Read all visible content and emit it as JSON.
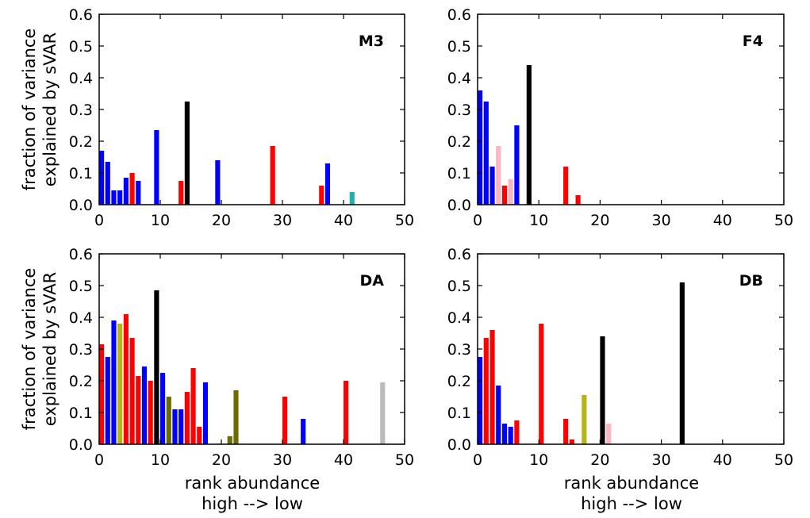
{
  "figure": {
    "ylabel_line1": "fraction of variance",
    "ylabel_line2": "explained by sVAR",
    "xlabel_line1": "rank abundance",
    "xlabel_line2": "high --> low"
  },
  "colors": {
    "blue": "#0000ff",
    "red": "#ff0000",
    "black": "#000000",
    "teal": "#20b2aa",
    "pink": "#ffb6c1",
    "olive": "#6b6b00",
    "yellowgreen": "#b5b51a",
    "gray": "#bbbbbb"
  },
  "chart_data": [
    {
      "type": "bar",
      "panel_label": "M3",
      "xlim": [
        0,
        50
      ],
      "ylim": [
        0,
        0.6
      ],
      "xticks": [
        "0",
        "10",
        "20",
        "30",
        "40",
        "50"
      ],
      "yticks": [
        "0.0",
        "0.1",
        "0.2",
        "0.3",
        "0.4",
        "0.5",
        "0.6"
      ],
      "bars": [
        {
          "x": 0,
          "y": 0.17,
          "color": "blue"
        },
        {
          "x": 1,
          "y": 0.135,
          "color": "blue"
        },
        {
          "x": 2,
          "y": 0.045,
          "color": "blue"
        },
        {
          "x": 3,
          "y": 0.045,
          "color": "blue"
        },
        {
          "x": 4,
          "y": 0.085,
          "color": "blue"
        },
        {
          "x": 5,
          "y": 0.1,
          "color": "red"
        },
        {
          "x": 6,
          "y": 0.075,
          "color": "blue"
        },
        {
          "x": 9,
          "y": 0.235,
          "color": "blue"
        },
        {
          "x": 13,
          "y": 0.075,
          "color": "red"
        },
        {
          "x": 14,
          "y": 0.325,
          "color": "black"
        },
        {
          "x": 19,
          "y": 0.14,
          "color": "blue"
        },
        {
          "x": 28,
          "y": 0.185,
          "color": "red"
        },
        {
          "x": 36,
          "y": 0.06,
          "color": "red"
        },
        {
          "x": 37,
          "y": 0.13,
          "color": "blue"
        },
        {
          "x": 41,
          "y": 0.04,
          "color": "teal"
        }
      ]
    },
    {
      "type": "bar",
      "panel_label": "F4",
      "xlim": [
        0,
        50
      ],
      "ylim": [
        0,
        0.6
      ],
      "xticks": [
        "0",
        "10",
        "20",
        "30",
        "40",
        "50"
      ],
      "yticks": [
        "0.0",
        "0.1",
        "0.2",
        "0.3",
        "0.4",
        "0.5",
        "0.6"
      ],
      "bars": [
        {
          "x": 0,
          "y": 0.36,
          "color": "blue"
        },
        {
          "x": 1,
          "y": 0.325,
          "color": "blue"
        },
        {
          "x": 2,
          "y": 0.12,
          "color": "blue"
        },
        {
          "x": 3,
          "y": 0.185,
          "color": "pink"
        },
        {
          "x": 4,
          "y": 0.06,
          "color": "red"
        },
        {
          "x": 5,
          "y": 0.08,
          "color": "pink"
        },
        {
          "x": 6,
          "y": 0.25,
          "color": "blue"
        },
        {
          "x": 8,
          "y": 0.44,
          "color": "black"
        },
        {
          "x": 14,
          "y": 0.12,
          "color": "red"
        },
        {
          "x": 16,
          "y": 0.03,
          "color": "red"
        }
      ]
    },
    {
      "type": "bar",
      "panel_label": "DA",
      "xlim": [
        0,
        50
      ],
      "ylim": [
        0,
        0.6
      ],
      "xticks": [
        "0",
        "10",
        "20",
        "30",
        "40",
        "50"
      ],
      "yticks": [
        "0.0",
        "0.1",
        "0.2",
        "0.3",
        "0.4",
        "0.5",
        "0.6"
      ],
      "bars": [
        {
          "x": 0,
          "y": 0.315,
          "color": "red"
        },
        {
          "x": 1,
          "y": 0.275,
          "color": "blue"
        },
        {
          "x": 2,
          "y": 0.39,
          "color": "blue"
        },
        {
          "x": 3,
          "y": 0.38,
          "color": "yellowgreen"
        },
        {
          "x": 4,
          "y": 0.41,
          "color": "red"
        },
        {
          "x": 5,
          "y": 0.335,
          "color": "red"
        },
        {
          "x": 6,
          "y": 0.215,
          "color": "red"
        },
        {
          "x": 7,
          "y": 0.245,
          "color": "blue"
        },
        {
          "x": 8,
          "y": 0.2,
          "color": "red"
        },
        {
          "x": 9,
          "y": 0.485,
          "color": "black"
        },
        {
          "x": 10,
          "y": 0.225,
          "color": "blue"
        },
        {
          "x": 11,
          "y": 0.15,
          "color": "olive"
        },
        {
          "x": 12,
          "y": 0.11,
          "color": "blue"
        },
        {
          "x": 13,
          "y": 0.11,
          "color": "blue"
        },
        {
          "x": 14,
          "y": 0.165,
          "color": "red"
        },
        {
          "x": 15,
          "y": 0.24,
          "color": "red"
        },
        {
          "x": 16,
          "y": 0.055,
          "color": "red"
        },
        {
          "x": 17,
          "y": 0.195,
          "color": "blue"
        },
        {
          "x": 21,
          "y": 0.025,
          "color": "olive"
        },
        {
          "x": 22,
          "y": 0.17,
          "color": "olive"
        },
        {
          "x": 30,
          "y": 0.15,
          "color": "red"
        },
        {
          "x": 33,
          "y": 0.08,
          "color": "blue"
        },
        {
          "x": 40,
          "y": 0.2,
          "color": "red"
        },
        {
          "x": 46,
          "y": 0.195,
          "color": "gray"
        }
      ]
    },
    {
      "type": "bar",
      "panel_label": "DB",
      "xlim": [
        0,
        50
      ],
      "ylim": [
        0,
        0.6
      ],
      "xticks": [
        "0",
        "10",
        "20",
        "30",
        "40",
        "50"
      ],
      "yticks": [
        "0.0",
        "0.1",
        "0.2",
        "0.3",
        "0.4",
        "0.5",
        "0.6"
      ],
      "bars": [
        {
          "x": 0,
          "y": 0.275,
          "color": "blue"
        },
        {
          "x": 1,
          "y": 0.335,
          "color": "red"
        },
        {
          "x": 2,
          "y": 0.36,
          "color": "red"
        },
        {
          "x": 3,
          "y": 0.185,
          "color": "blue"
        },
        {
          "x": 4,
          "y": 0.065,
          "color": "blue"
        },
        {
          "x": 5,
          "y": 0.055,
          "color": "blue"
        },
        {
          "x": 6,
          "y": 0.075,
          "color": "red"
        },
        {
          "x": 10,
          "y": 0.38,
          "color": "red"
        },
        {
          "x": 14,
          "y": 0.08,
          "color": "red"
        },
        {
          "x": 15,
          "y": 0.015,
          "color": "red"
        },
        {
          "x": 17,
          "y": 0.155,
          "color": "yellowgreen"
        },
        {
          "x": 20,
          "y": 0.34,
          "color": "black"
        },
        {
          "x": 21,
          "y": 0.065,
          "color": "pink"
        },
        {
          "x": 33,
          "y": 0.51,
          "color": "black"
        }
      ]
    }
  ]
}
